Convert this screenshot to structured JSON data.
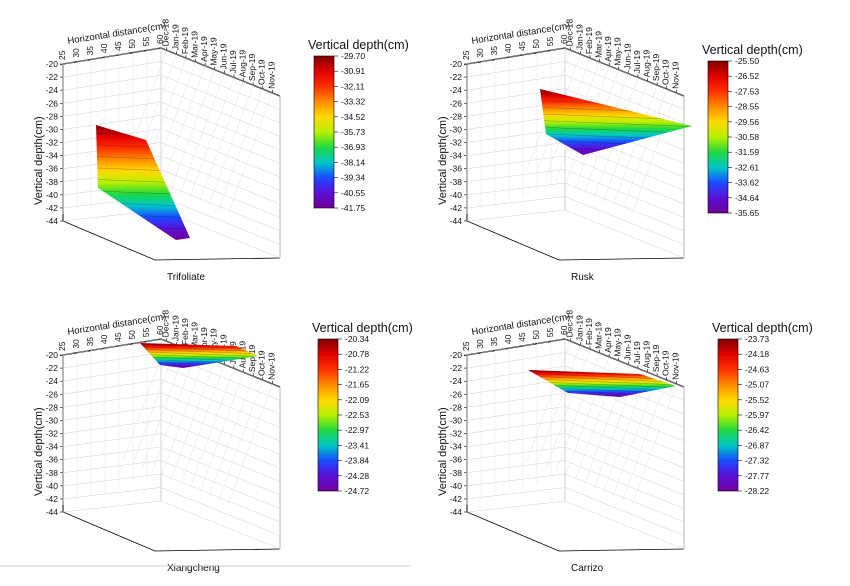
{
  "chart_data": [
    {
      "type": "surface",
      "name": "Trifoliate",
      "xlabel": "Horizontal distance(cm)",
      "ylabel": "Vertical depth(cm)",
      "legend_title": "Vertical depth(cm)",
      "x_ticks": [
        "25",
        "30",
        "35",
        "40",
        "45",
        "50",
        "55",
        "60"
      ],
      "z_ticks": [
        "-20",
        "-22",
        "-24",
        "-26",
        "-28",
        "-30",
        "-32",
        "-34",
        "-36",
        "-38",
        "-40",
        "-42",
        "-44"
      ],
      "date_ticks": [
        "Dec-18",
        "Jan-19",
        "Feb-19",
        "Mar-19",
        "Apr-19",
        "May-19",
        "Jun-19",
        "Jul-19",
        "Aug-19",
        "Sep-19",
        "Oct-19",
        "Nov-19"
      ],
      "colorbar_levels": [
        "-29.70",
        "-30.91",
        "-32.11",
        "-33.32",
        "-34.52",
        "-35.73",
        "-36.93",
        "-38.14",
        "-39.34",
        "-40.55",
        "-41.75"
      ],
      "depth_range": [
        -41.75,
        -29.7
      ]
    },
    {
      "type": "surface",
      "name": "Rusk",
      "xlabel": "Horizontal distance(cm)",
      "ylabel": "Vertical depth(cm)",
      "legend_title": "Vertical depth(cm)",
      "x_ticks": [
        "25",
        "30",
        "35",
        "40",
        "45",
        "50",
        "55",
        "60"
      ],
      "z_ticks": [
        "-20",
        "-22",
        "-24",
        "-26",
        "-28",
        "-30",
        "-32",
        "-34",
        "-36",
        "-38",
        "-40",
        "-42",
        "-44"
      ],
      "date_ticks": [
        "Dec-18",
        "Jan-19",
        "Feb-19",
        "Mar-19",
        "Apr-19",
        "May-19",
        "Jun-19",
        "Jul-19",
        "Aug-19",
        "Sep-19",
        "Oct-19",
        "Nov-19"
      ],
      "colorbar_levels": [
        "-25.50",
        "-26.52",
        "-27.53",
        "-28.55",
        "-29.56",
        "-30.58",
        "-31.59",
        "-32.61",
        "-33.62",
        "-34.64",
        "-35.65"
      ],
      "depth_range": [
        -35.65,
        -25.5
      ]
    },
    {
      "type": "surface",
      "name": "Xiangcheng",
      "xlabel": "Horizontal distance(cm)",
      "ylabel": "Vertical depth(cm)",
      "legend_title": "Vertical depth(cm)",
      "x_ticks": [
        "25",
        "30",
        "35",
        "40",
        "45",
        "50",
        "55",
        "60"
      ],
      "z_ticks": [
        "-20",
        "-22",
        "-24",
        "-26",
        "-28",
        "-30",
        "-32",
        "-34",
        "-36",
        "-38",
        "-40",
        "-42",
        "-44"
      ],
      "date_ticks": [
        "Dec-18",
        "Jan-19",
        "Feb-19",
        "Mar-19",
        "Apr-19",
        "May-19",
        "Jun-19",
        "Jul-19",
        "Aug-19",
        "Sep-19",
        "Oct-19",
        "Nov-19"
      ],
      "colorbar_levels": [
        "-20.34",
        "-20.78",
        "-21.22",
        "-21.65",
        "-22.09",
        "-22.53",
        "-22.97",
        "-23.41",
        "-23.84",
        "-24.28",
        "-24.72"
      ],
      "depth_range": [
        -24.72,
        -20.34
      ]
    },
    {
      "type": "surface",
      "name": "Carrizo",
      "xlabel": "Horizontal distance(cm)",
      "ylabel": "Vertical depth(cm)",
      "legend_title": "Vertical depth(cm)",
      "x_ticks": [
        "25",
        "30",
        "35",
        "40",
        "45",
        "50",
        "55",
        "60"
      ],
      "z_ticks": [
        "-20",
        "-22",
        "-24",
        "-26",
        "-28",
        "-30",
        "-32",
        "-34",
        "-36",
        "-38",
        "-40",
        "-42",
        "-44"
      ],
      "date_ticks": [
        "Dec-18",
        "Jan-19",
        "Feb-19",
        "Mar-19",
        "Apr-19",
        "May-19",
        "Jun-19",
        "Jul-19",
        "Aug-19",
        "Sep-19",
        "Oct-19",
        "Nov-19"
      ],
      "colorbar_levels": [
        "-23.73",
        "-24.18",
        "-24.63",
        "-25.07",
        "-25.52",
        "-25.97",
        "-26.42",
        "-26.87",
        "-27.32",
        "-27.77",
        "-28.22"
      ],
      "depth_range": [
        -28.22,
        -23.73
      ]
    }
  ],
  "colors": {
    "colormap": [
      "#7f0000",
      "#e00000",
      "#ff3000",
      "#ff8c00",
      "#ffd800",
      "#b8f000",
      "#20d840",
      "#00c8c8",
      "#1a4cff",
      "#5a10d8",
      "#70009a"
    ]
  }
}
